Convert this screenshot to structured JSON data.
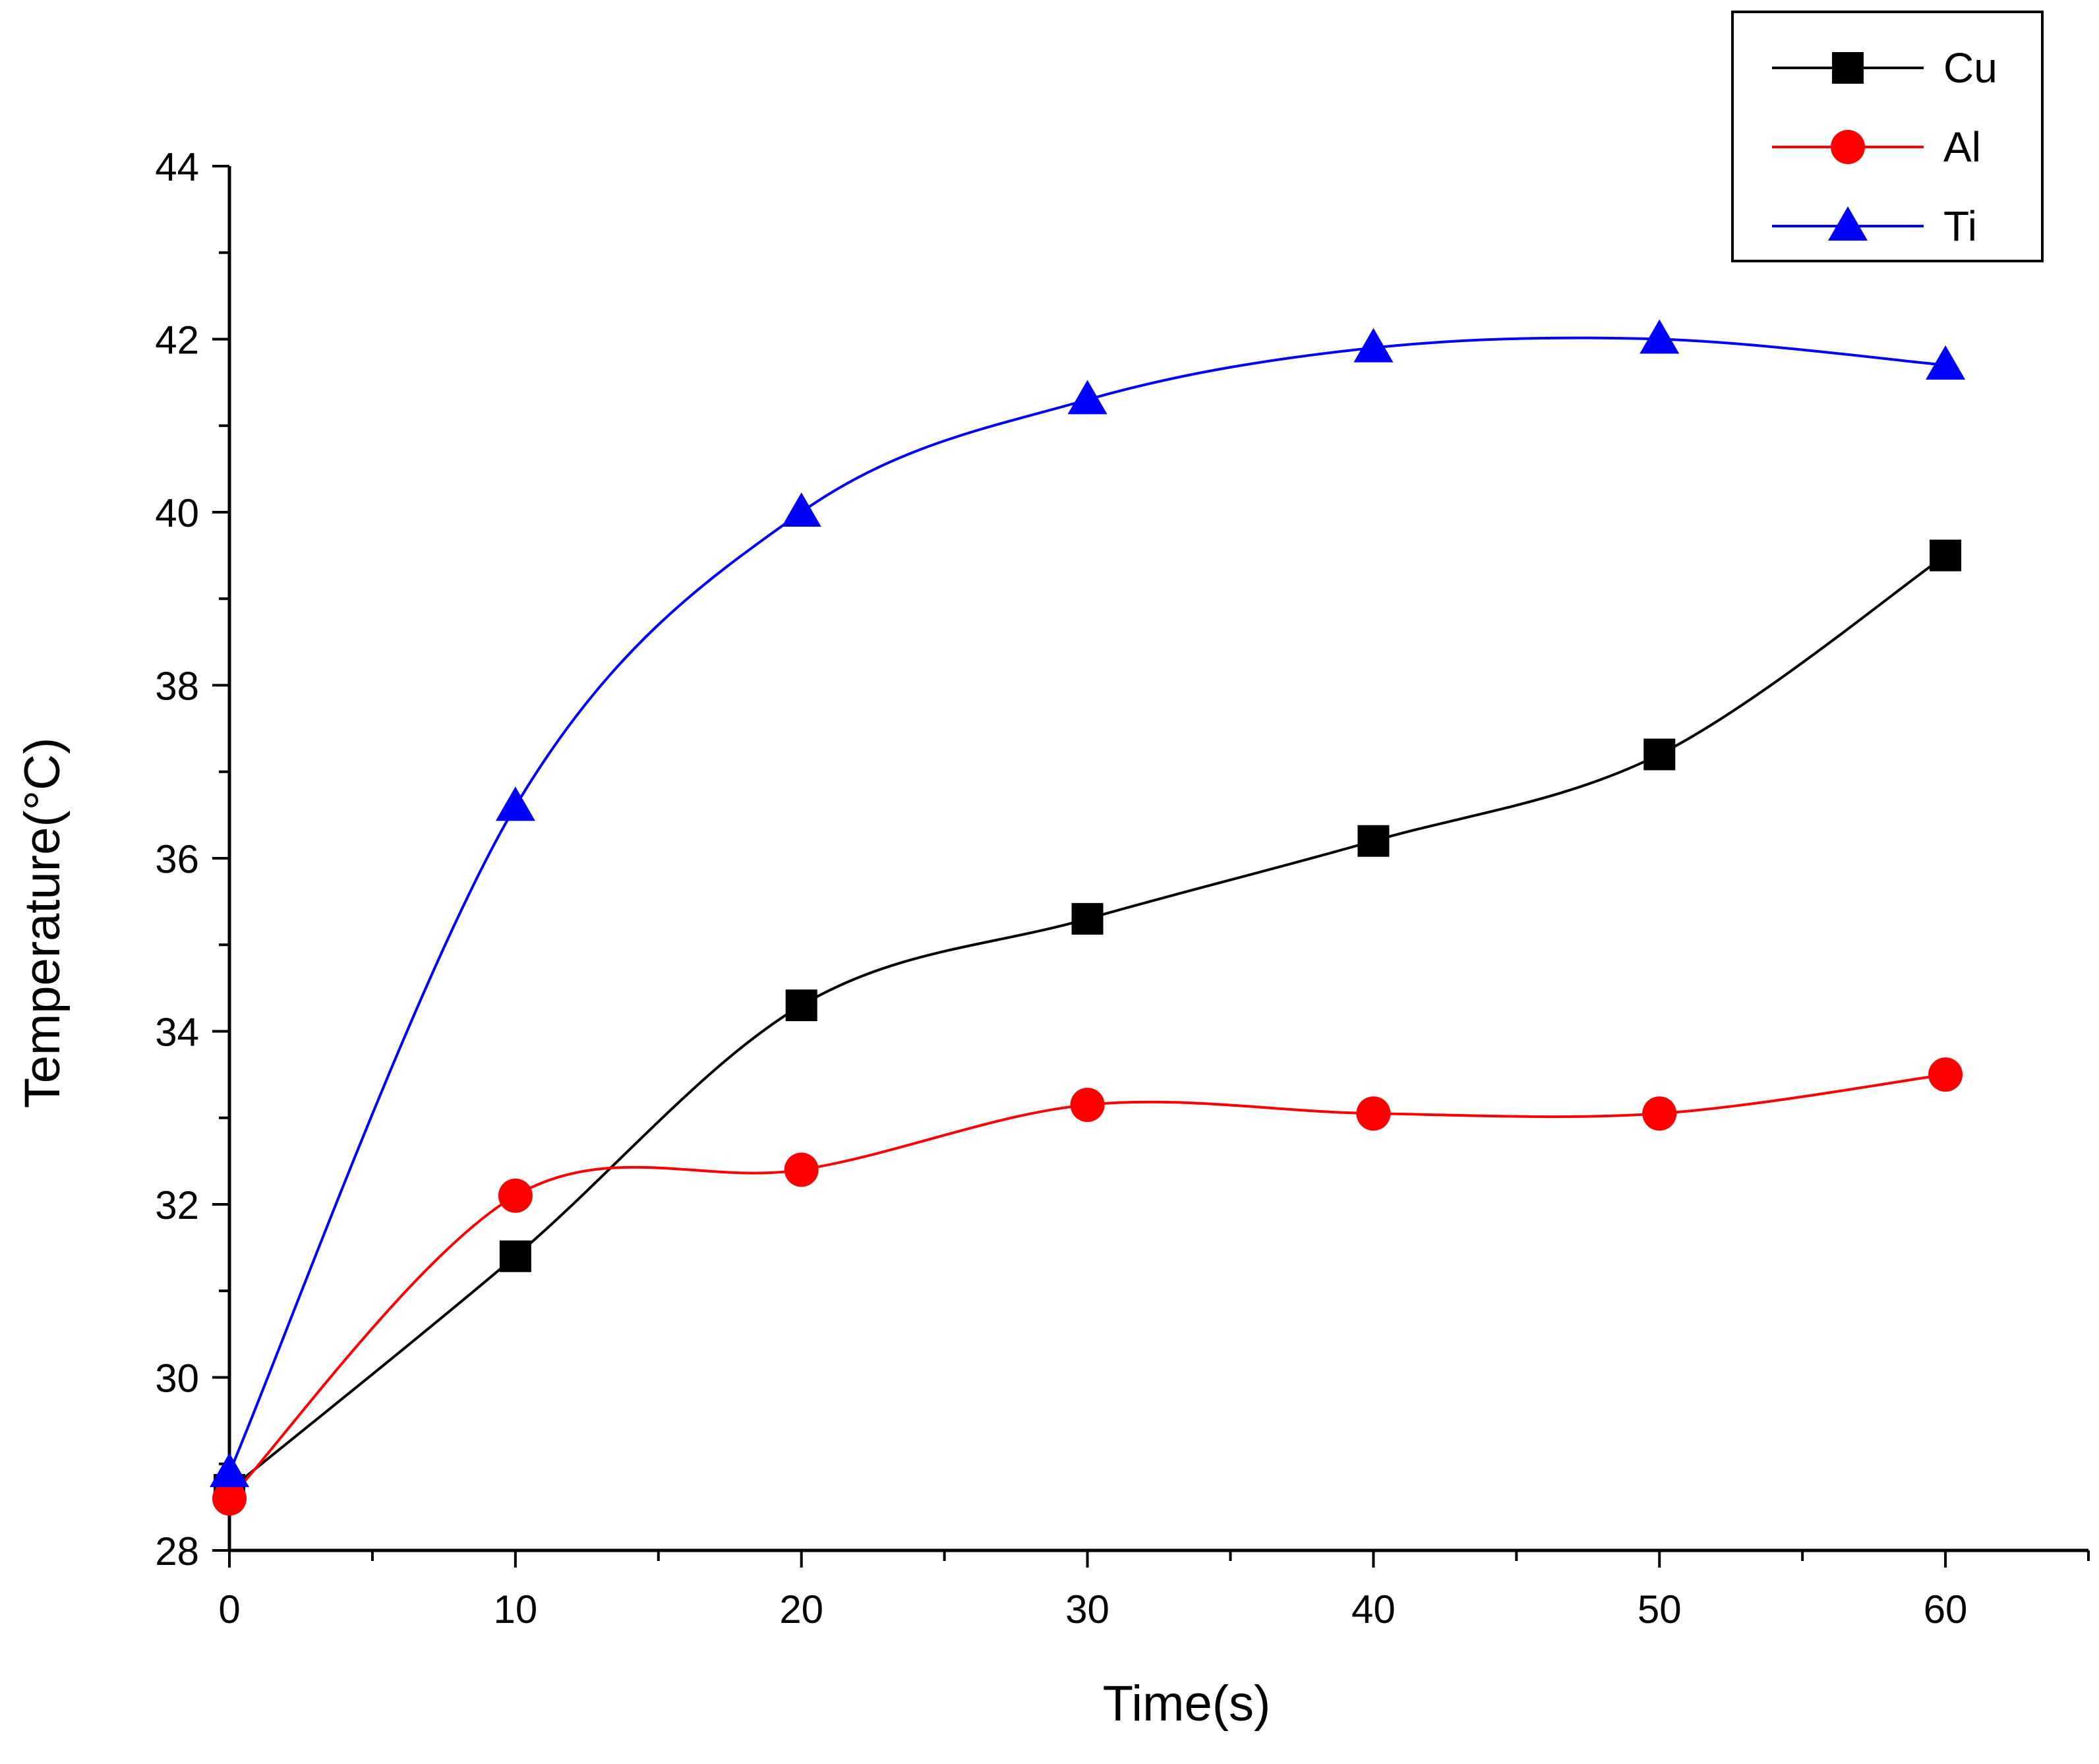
{
  "chart_data": {
    "type": "line",
    "title": "",
    "xlabel": "Time(s)",
    "ylabel": "Temperature(°C)",
    "xlim": [
      0,
      65
    ],
    "ylim": [
      28,
      44
    ],
    "x_ticks": [
      0,
      10,
      20,
      30,
      40,
      50,
      60
    ],
    "y_ticks": [
      28,
      30,
      32,
      34,
      36,
      38,
      40,
      42,
      44
    ],
    "x": [
      0,
      10,
      20,
      30,
      40,
      50,
      60
    ],
    "grid": false,
    "legend_position": "top-right",
    "series": [
      {
        "name": "Cu",
        "color": "#000000",
        "marker": "square",
        "values": [
          28.7,
          31.4,
          34.3,
          35.3,
          36.2,
          37.2,
          39.5
        ]
      },
      {
        "name": "Al",
        "color": "#ff0000",
        "marker": "circle",
        "values": [
          28.6,
          32.1,
          32.4,
          33.15,
          33.05,
          33.05,
          33.5
        ]
      },
      {
        "name": "Ti",
        "color": "#0000ff",
        "marker": "triangle",
        "values": [
          28.9,
          36.6,
          40.0,
          41.3,
          41.9,
          42.0,
          41.7
        ]
      }
    ]
  }
}
